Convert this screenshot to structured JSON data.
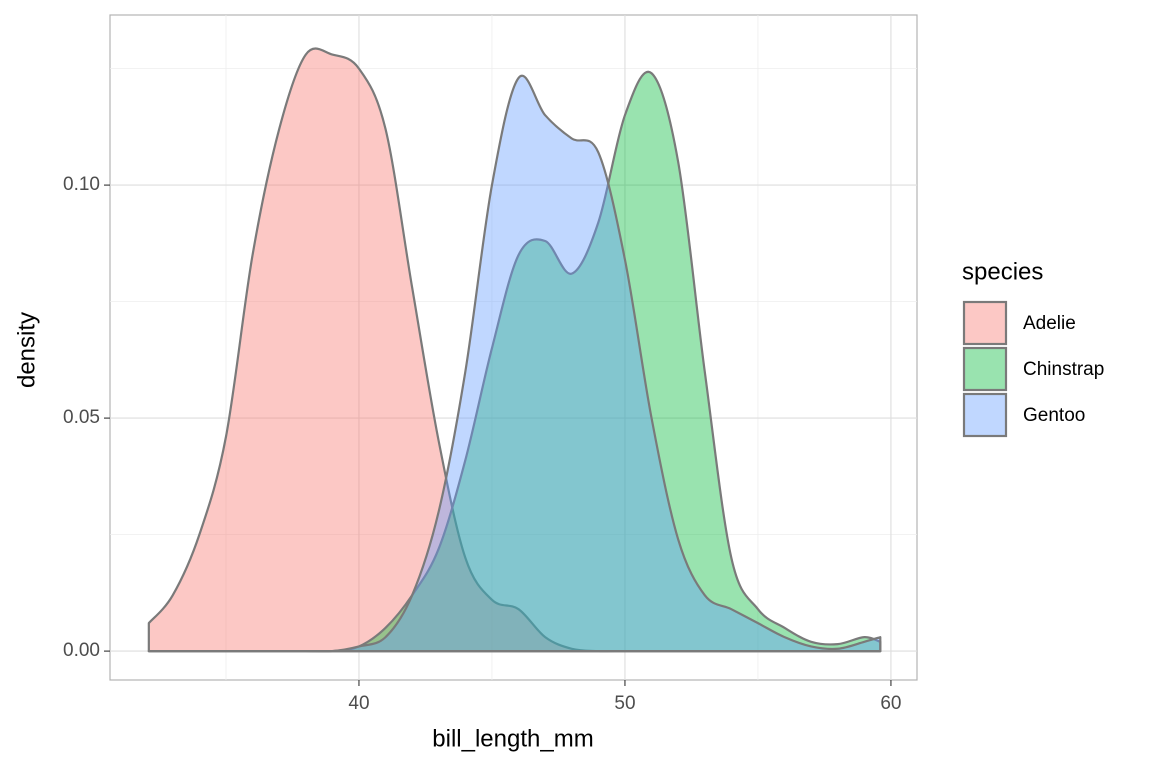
{
  "chart_data": {
    "type": "density",
    "x_label": "bill_length_mm",
    "y_label": "density",
    "legend_title": "species",
    "legend_position": "right",
    "x": [
      32.1,
      33,
      34,
      35,
      36,
      37,
      38,
      39,
      40,
      41,
      42,
      43,
      44,
      45,
      46,
      47,
      48,
      49,
      50,
      51,
      52,
      53,
      54,
      55,
      56,
      57,
      58,
      59,
      59.6
    ],
    "series": [
      {
        "name": "Adelie",
        "color": "#F8766D",
        "values": [
          0.006,
          0.012,
          0.025,
          0.046,
          0.085,
          0.112,
          0.128,
          0.128,
          0.125,
          0.112,
          0.078,
          0.045,
          0.02,
          0.011,
          0.009,
          0.003,
          0.0005,
          0,
          0,
          0,
          0,
          0,
          0,
          0,
          0,
          0,
          0,
          0,
          0
        ]
      },
      {
        "name": "Chinstrap",
        "color": "#00BA38",
        "values": [
          0,
          0,
          0,
          0,
          0,
          0,
          0,
          0,
          0.001,
          0.005,
          0.012,
          0.022,
          0.041,
          0.065,
          0.085,
          0.088,
          0.081,
          0.092,
          0.115,
          0.124,
          0.105,
          0.06,
          0.02,
          0.009,
          0.005,
          0.002,
          0.0015,
          0.003,
          0.002
        ]
      },
      {
        "name": "Gentoo",
        "color": "#619CFF",
        "values": [
          0,
          0,
          0,
          0,
          0,
          0,
          0,
          0,
          0.001,
          0.003,
          0.012,
          0.03,
          0.06,
          0.1,
          0.123,
          0.115,
          0.11,
          0.107,
          0.084,
          0.05,
          0.024,
          0.012,
          0.009,
          0.006,
          0.003,
          0.001,
          0.0005,
          0.002,
          0.003
        ]
      }
    ],
    "xlim": [
      30.64,
      60.98
    ],
    "ylim": [
      -0.0062,
      0.1365
    ],
    "xticks": [
      40,
      50,
      60
    ],
    "yticks": [
      {
        "value": 0,
        "label": "0.00"
      },
      {
        "value": 0.05,
        "label": "0.05"
      },
      {
        "value": 0.1,
        "label": "0.10"
      }
    ],
    "x_minor_ticks": [
      35,
      45,
      55
    ],
    "y_minor_ticks": [
      0.025,
      0.075,
      0.125
    ],
    "grid": true,
    "fill_opacity": 0.4,
    "outline_color": "#7a7a7a"
  }
}
